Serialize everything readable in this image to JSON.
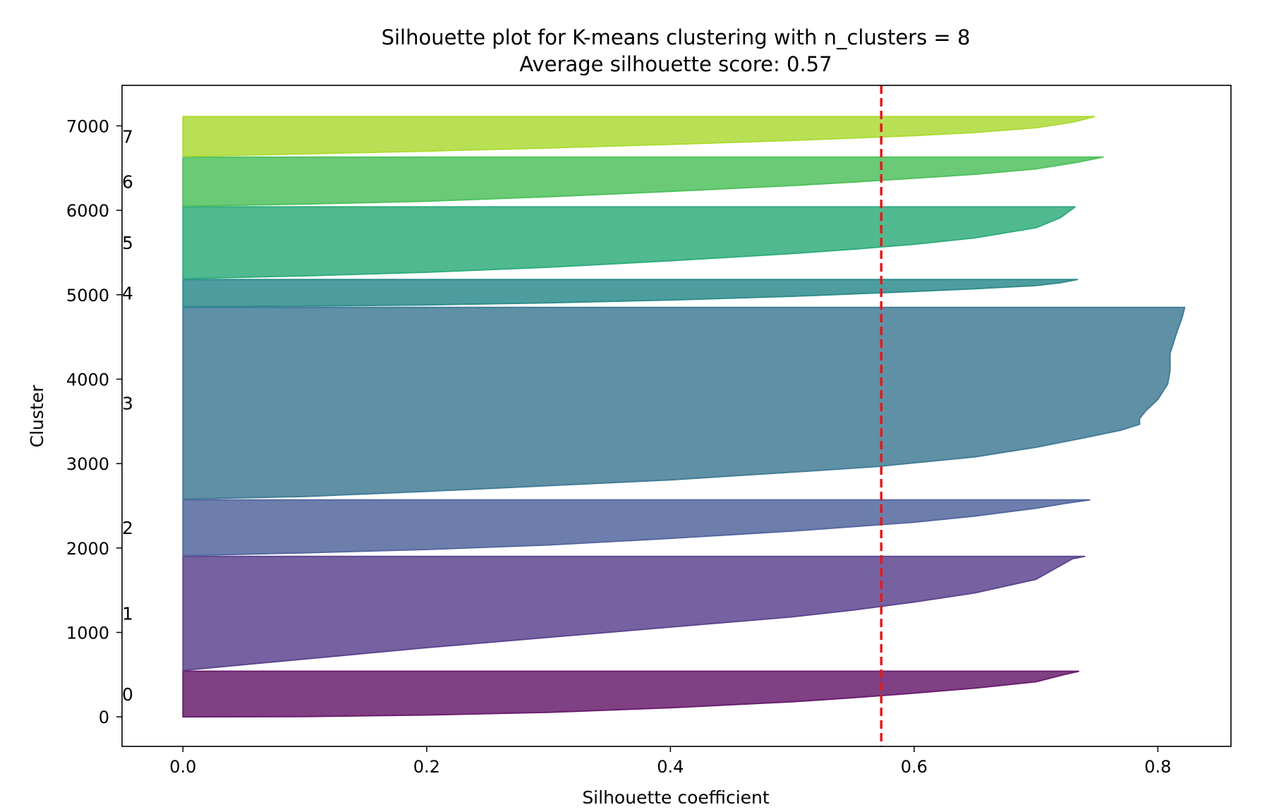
{
  "chart_data": {
    "type": "area",
    "title": "Silhouette plot for K-means clustering with n_clusters = 8",
    "subtitle": "Average silhouette score: 0.57",
    "xlabel": "Silhouette coefficient",
    "ylabel": "Cluster",
    "xlim": [
      -0.05,
      0.86
    ],
    "ylim": [
      -350,
      7480
    ],
    "xticks": [
      0.0,
      0.2,
      0.4,
      0.6,
      0.8
    ],
    "xtick_labels": [
      "0.0",
      "0.2",
      "0.4",
      "0.6",
      "0.8"
    ],
    "yticks": [
      0,
      1000,
      2000,
      3000,
      4000,
      5000,
      6000,
      7000
    ],
    "ytick_labels": [
      "0",
      "1000",
      "2000",
      "3000",
      "4000",
      "5000",
      "6000",
      "7000"
    ],
    "grid": false,
    "average_score": 0.573,
    "average_line_color": "#e31a1c",
    "clusters": [
      {
        "label": "0",
        "color": "#6a1f6e",
        "y_range": [
          0,
          540
        ],
        "profile": [
          [
            0,
            0
          ],
          [
            0.1,
            0.005
          ],
          [
            0.2,
            0.04
          ],
          [
            0.3,
            0.1
          ],
          [
            0.4,
            0.2
          ],
          [
            0.5,
            0.33
          ],
          [
            0.55,
            0.42
          ],
          [
            0.6,
            0.52
          ],
          [
            0.65,
            0.63
          ],
          [
            0.7,
            0.77
          ],
          [
            0.722,
            0.92
          ],
          [
            0.735,
            1
          ]
        ]
      },
      {
        "label": "1",
        "color": "#5e4690",
        "y_range": [
          550,
          1900
        ],
        "profile": [
          [
            0,
            0
          ],
          [
            0.1,
            0.1
          ],
          [
            0.2,
            0.2
          ],
          [
            0.3,
            0.29
          ],
          [
            0.4,
            0.38
          ],
          [
            0.5,
            0.47
          ],
          [
            0.55,
            0.53
          ],
          [
            0.6,
            0.6
          ],
          [
            0.65,
            0.68
          ],
          [
            0.7,
            0.8
          ],
          [
            0.73,
            0.98
          ],
          [
            0.74,
            1
          ]
        ]
      },
      {
        "label": "2",
        "color": "#54679f",
        "y_range": [
          1910,
          2570
        ],
        "profile": [
          [
            0,
            0
          ],
          [
            0.1,
            0.05
          ],
          [
            0.2,
            0.11
          ],
          [
            0.3,
            0.19
          ],
          [
            0.4,
            0.31
          ],
          [
            0.5,
            0.44
          ],
          [
            0.55,
            0.52
          ],
          [
            0.6,
            0.6
          ],
          [
            0.65,
            0.71
          ],
          [
            0.7,
            0.85
          ],
          [
            0.725,
            0.94
          ],
          [
            0.744,
            1
          ]
        ]
      },
      {
        "label": "3",
        "color": "#437d97",
        "y_range": [
          2580,
          4850
        ],
        "profile": [
          [
            0,
            0
          ],
          [
            0.1,
            0.013
          ],
          [
            0.2,
            0.04
          ],
          [
            0.3,
            0.07
          ],
          [
            0.4,
            0.1
          ],
          [
            0.5,
            0.14
          ],
          [
            0.57,
            0.17
          ],
          [
            0.65,
            0.22
          ],
          [
            0.7,
            0.27
          ],
          [
            0.74,
            0.32
          ],
          [
            0.77,
            0.36
          ],
          [
            0.785,
            0.39
          ],
          [
            0.785,
            0.42
          ],
          [
            0.79,
            0.46
          ],
          [
            0.8,
            0.52
          ],
          [
            0.808,
            0.6
          ],
          [
            0.81,
            0.67
          ],
          [
            0.81,
            0.76
          ],
          [
            0.815,
            0.86
          ],
          [
            0.82,
            0.95
          ],
          [
            0.822,
            1
          ]
        ]
      },
      {
        "label": "4",
        "color": "#2f8c8d",
        "y_range": [
          4860,
          5180
        ],
        "profile": [
          [
            0,
            0
          ],
          [
            0.1,
            0.02
          ],
          [
            0.2,
            0.06
          ],
          [
            0.3,
            0.14
          ],
          [
            0.4,
            0.24
          ],
          [
            0.5,
            0.38
          ],
          [
            0.6,
            0.56
          ],
          [
            0.65,
            0.66
          ],
          [
            0.7,
            0.78
          ],
          [
            0.72,
            0.88
          ],
          [
            0.734,
            1
          ]
        ]
      },
      {
        "label": "5",
        "color": "#31ad7d",
        "y_range": [
          5190,
          6040
        ],
        "profile": [
          [
            0,
            0
          ],
          [
            0.1,
            0.04
          ],
          [
            0.2,
            0.09
          ],
          [
            0.3,
            0.16
          ],
          [
            0.4,
            0.25
          ],
          [
            0.5,
            0.35
          ],
          [
            0.55,
            0.41
          ],
          [
            0.6,
            0.48
          ],
          [
            0.65,
            0.57
          ],
          [
            0.7,
            0.71
          ],
          [
            0.72,
            0.85
          ],
          [
            0.732,
            1
          ]
        ]
      },
      {
        "label": "6",
        "color": "#50c15e",
        "y_range": [
          6050,
          6630
        ],
        "profile": [
          [
            0,
            0
          ],
          [
            0.1,
            0.04
          ],
          [
            0.2,
            0.1
          ],
          [
            0.3,
            0.19
          ],
          [
            0.4,
            0.3
          ],
          [
            0.5,
            0.42
          ],
          [
            0.55,
            0.49
          ],
          [
            0.6,
            0.57
          ],
          [
            0.65,
            0.65
          ],
          [
            0.7,
            0.76
          ],
          [
            0.735,
            0.9
          ],
          [
            0.755,
            1
          ]
        ]
      },
      {
        "label": "7",
        "color": "#addb36",
        "y_range": [
          6640,
          7110
        ],
        "profile": [
          [
            0,
            0
          ],
          [
            0.1,
            0.06
          ],
          [
            0.2,
            0.13
          ],
          [
            0.3,
            0.21
          ],
          [
            0.4,
            0.3
          ],
          [
            0.5,
            0.4
          ],
          [
            0.6,
            0.52
          ],
          [
            0.65,
            0.6
          ],
          [
            0.7,
            0.72
          ],
          [
            0.73,
            0.86
          ],
          [
            0.748,
            1
          ]
        ]
      }
    ]
  }
}
